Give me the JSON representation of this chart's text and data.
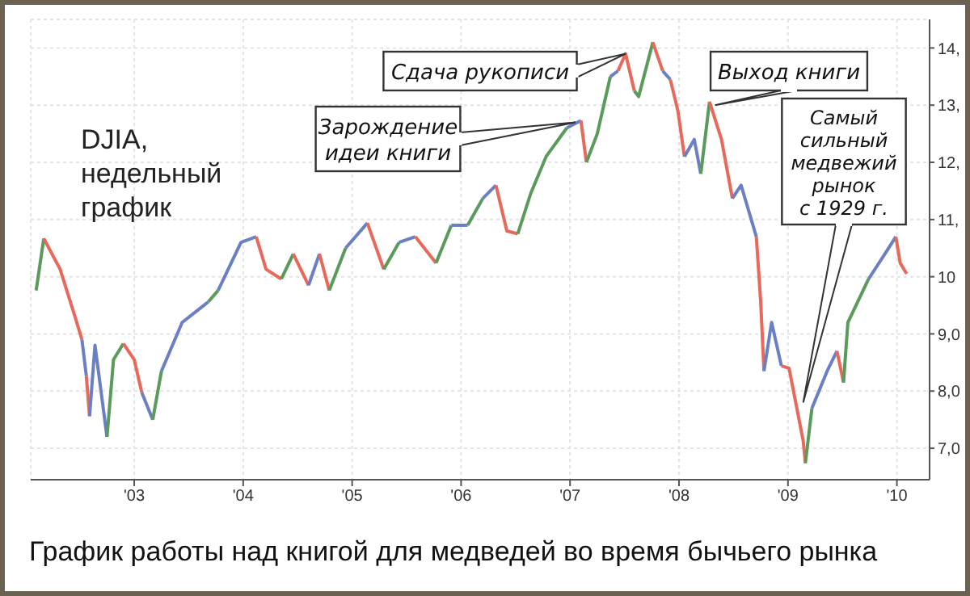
{
  "chart_data": {
    "type": "line",
    "title": "График работы над книгой для медведей во время бычьего рынка",
    "annotations": [
      "DJIA,\nнедельный\nграфик",
      {
        "text": "Зарождение\nидеи книги",
        "x": 2007.05,
        "y": 12.7
      },
      {
        "text": "Сдача рукописи",
        "x": 2007.51,
        "y": 13.9
      },
      {
        "text": "Выход книги",
        "x": 2008.33,
        "y": 13.0
      },
      {
        "text": "Самый\nсильный\nмедвежий\nрынок\nс 1929 г.",
        "x": 2009.14,
        "y": 7.8
      }
    ],
    "series": [
      {
        "color": "#5a9a5a",
        "x": [
          2002.1,
          2002.17
        ],
        "values": [
          9.76,
          10.67
        ]
      },
      {
        "color": "#e8695a",
        "x": [
          2002.17,
          2002.32,
          2002.46,
          2002.52
        ],
        "values": [
          10.67,
          10.13,
          9.28,
          8.9
        ]
      },
      {
        "color": "#6b7fc4",
        "x": [
          2002.52,
          2002.56
        ],
        "values": [
          8.9,
          8.27
        ]
      },
      {
        "color": "#e8695a",
        "x": [
          2002.56,
          2002.59
        ],
        "values": [
          8.27,
          7.56
        ]
      },
      {
        "color": "#6b7fc4",
        "x": [
          2002.59,
          2002.64,
          2002.75
        ],
        "values": [
          7.56,
          8.8,
          7.2
        ]
      },
      {
        "color": "#5a9a5a",
        "x": [
          2002.75,
          2002.81,
          2002.9
        ],
        "values": [
          7.2,
          8.55,
          8.83
        ]
      },
      {
        "color": "#e8695a",
        "x": [
          2002.9,
          2003.0,
          2003.07
        ],
        "values": [
          8.83,
          8.55,
          7.97
        ]
      },
      {
        "color": "#6b7fc4",
        "x": [
          2003.07,
          2003.17
        ],
        "values": [
          7.97,
          7.5
        ]
      },
      {
        "color": "#5a9a5a",
        "x": [
          2003.17,
          2003.25
        ],
        "values": [
          7.5,
          8.35
        ]
      },
      {
        "color": "#6b7fc4",
        "x": [
          2003.25,
          2003.44,
          2003.68
        ],
        "values": [
          8.35,
          9.2,
          9.56
        ]
      },
      {
        "color": "#5a9a5a",
        "x": [
          2003.68,
          2003.77
        ],
        "values": [
          9.56,
          9.76
        ]
      },
      {
        "color": "#6b7fc4",
        "x": [
          2003.77,
          2003.98,
          2004.12
        ],
        "values": [
          9.76,
          10.6,
          10.7
        ]
      },
      {
        "color": "#e8695a",
        "x": [
          2004.12,
          2004.21,
          2004.35
        ],
        "values": [
          10.7,
          10.13,
          9.96
        ]
      },
      {
        "color": "#5a9a5a",
        "x": [
          2004.35,
          2004.46
        ],
        "values": [
          9.96,
          10.4
        ]
      },
      {
        "color": "#e8695a",
        "x": [
          2004.46,
          2004.6
        ],
        "values": [
          10.4,
          9.85
        ]
      },
      {
        "color": "#6b7fc4",
        "x": [
          2004.6,
          2004.7
        ],
        "values": [
          9.85,
          10.4
        ]
      },
      {
        "color": "#e8695a",
        "x": [
          2004.7,
          2004.79
        ],
        "values": [
          10.4,
          9.76
        ]
      },
      {
        "color": "#5a9a5a",
        "x": [
          2004.79,
          2004.94
        ],
        "values": [
          9.76,
          10.5
        ]
      },
      {
        "color": "#6b7fc4",
        "x": [
          2004.94,
          2005.14
        ],
        "values": [
          10.5,
          10.94
        ]
      },
      {
        "color": "#e8695a",
        "x": [
          2005.14,
          2005.29
        ],
        "values": [
          10.94,
          10.13
        ]
      },
      {
        "color": "#5a9a5a",
        "x": [
          2005.29,
          2005.43
        ],
        "values": [
          10.13,
          10.6
        ]
      },
      {
        "color": "#6b7fc4",
        "x": [
          2005.43,
          2005.58
        ],
        "values": [
          10.6,
          10.7
        ]
      },
      {
        "color": "#e8695a",
        "x": [
          2005.58,
          2005.77
        ],
        "values": [
          10.7,
          10.24
        ]
      },
      {
        "color": "#5a9a5a",
        "x": [
          2005.77,
          2005.91
        ],
        "values": [
          10.24,
          10.9
        ]
      },
      {
        "color": "#6b7fc4",
        "x": [
          2005.91,
          2006.06
        ],
        "values": [
          10.9,
          10.9
        ]
      },
      {
        "color": "#5a9a5a",
        "x": [
          2006.06,
          2006.2
        ],
        "values": [
          10.9,
          11.37
        ]
      },
      {
        "color": "#6b7fc4",
        "x": [
          2006.2,
          2006.32
        ],
        "values": [
          11.37,
          11.6
        ]
      },
      {
        "color": "#e8695a",
        "x": [
          2006.32,
          2006.42,
          2006.52
        ],
        "values": [
          11.6,
          10.8,
          10.75
        ]
      },
      {
        "color": "#5a9a5a",
        "x": [
          2006.52,
          2006.64,
          2006.78,
          2006.97
        ],
        "values": [
          10.75,
          11.46,
          12.1,
          12.6
        ]
      },
      {
        "color": "#6b7fc4",
        "x": [
          2006.97,
          2007.1
        ],
        "values": [
          12.6,
          12.73
        ]
      },
      {
        "color": "#e8695a",
        "x": [
          2007.1,
          2007.15
        ],
        "values": [
          12.73,
          12.0
        ]
      },
      {
        "color": "#5a9a5a",
        "x": [
          2007.15,
          2007.25,
          2007.37
        ],
        "values": [
          12.0,
          12.5,
          13.5
        ]
      },
      {
        "color": "#6b7fc4",
        "x": [
          2007.37,
          2007.44
        ],
        "values": [
          13.5,
          13.6
        ]
      },
      {
        "color": "#e8695a",
        "x": [
          2007.44,
          2007.51,
          2007.59
        ],
        "values": [
          13.6,
          13.9,
          13.25
        ]
      },
      {
        "color": "#5a9a5a",
        "x": [
          2007.59,
          2007.63,
          2007.76
        ],
        "values": [
          13.25,
          13.15,
          14.1
        ]
      },
      {
        "color": "#e8695a",
        "x": [
          2007.76,
          2007.85
        ],
        "values": [
          14.1,
          13.6
        ]
      },
      {
        "color": "#6b7fc4",
        "x": [
          2007.85,
          2007.92
        ],
        "values": [
          13.6,
          13.45
        ]
      },
      {
        "color": "#e8695a",
        "x": [
          2007.92,
          2007.99,
          2008.05
        ],
        "values": [
          13.45,
          12.9,
          12.1
        ]
      },
      {
        "color": "#6b7fc4",
        "x": [
          2008.05,
          2008.14,
          2008.2
        ],
        "values": [
          12.1,
          12.4,
          11.8
        ]
      },
      {
        "color": "#5a9a5a",
        "x": [
          2008.2,
          2008.28
        ],
        "values": [
          11.8,
          13.06
        ]
      },
      {
        "color": "#e8695a",
        "x": [
          2008.28,
          2008.39,
          2008.49
        ],
        "values": [
          13.06,
          12.4,
          11.37
        ]
      },
      {
        "color": "#6b7fc4",
        "x": [
          2008.49,
          2008.57,
          2008.71
        ],
        "values": [
          11.37,
          11.6,
          10.7
        ]
      },
      {
        "color": "#e8695a",
        "x": [
          2008.71,
          2008.75,
          2008.78
        ],
        "values": [
          10.7,
          9.56,
          8.35
        ]
      },
      {
        "color": "#6b7fc4",
        "x": [
          2008.78,
          2008.85,
          2008.94
        ],
        "values": [
          8.35,
          9.2,
          8.44
        ]
      },
      {
        "color": "#e8695a",
        "x": [
          2008.94,
          2009.01,
          2009.14,
          2009.16
        ],
        "values": [
          8.44,
          8.4,
          7.13,
          6.74
        ]
      },
      {
        "color": "#5a9a5a",
        "x": [
          2009.16,
          2009.22
        ],
        "values": [
          6.74,
          7.7
        ]
      },
      {
        "color": "#6b7fc4",
        "x": [
          2009.22,
          2009.36,
          2009.45
        ],
        "values": [
          7.7,
          8.35,
          8.7
        ]
      },
      {
        "color": "#e8695a",
        "x": [
          2009.45,
          2009.51
        ],
        "values": [
          8.7,
          8.15
        ]
      },
      {
        "color": "#5a9a5a",
        "x": [
          2009.51,
          2009.55,
          2009.74
        ],
        "values": [
          8.15,
          9.2,
          9.96
        ]
      },
      {
        "color": "#6b7fc4",
        "x": [
          2009.74,
          2009.89,
          2009.99
        ],
        "values": [
          9.96,
          10.4,
          10.7
        ]
      },
      {
        "color": "#e8695a",
        "x": [
          2009.99,
          2010.03,
          2010.09
        ],
        "values": [
          10.7,
          10.24,
          10.05
        ]
      }
    ],
    "xlim": [
      2002.05,
      2010.3
    ],
    "xticks": [
      {
        "value": 2003,
        "label": "'03"
      },
      {
        "value": 2004,
        "label": "'04"
      },
      {
        "value": 2005,
        "label": "'05"
      },
      {
        "value": 2006,
        "label": "'06"
      },
      {
        "value": 2007,
        "label": "'07"
      },
      {
        "value": 2008,
        "label": "'08"
      },
      {
        "value": 2009,
        "label": "'09"
      },
      {
        "value": 2010,
        "label": "'10"
      }
    ],
    "ylim": [
      6.45,
      14.5
    ],
    "yticks": [
      {
        "value": 7,
        "label": "7,0"
      },
      {
        "value": 8,
        "label": "8,0"
      },
      {
        "value": 9,
        "label": "9,0"
      },
      {
        "value": 10,
        "label": "10"
      },
      {
        "value": 11,
        "label": "11,"
      },
      {
        "value": 12,
        "label": "12,"
      },
      {
        "value": 13,
        "label": "13,"
      },
      {
        "value": 14,
        "label": "14,"
      }
    ],
    "grid": true,
    "marker": "none",
    "line_style": "solid",
    "legend": false
  }
}
